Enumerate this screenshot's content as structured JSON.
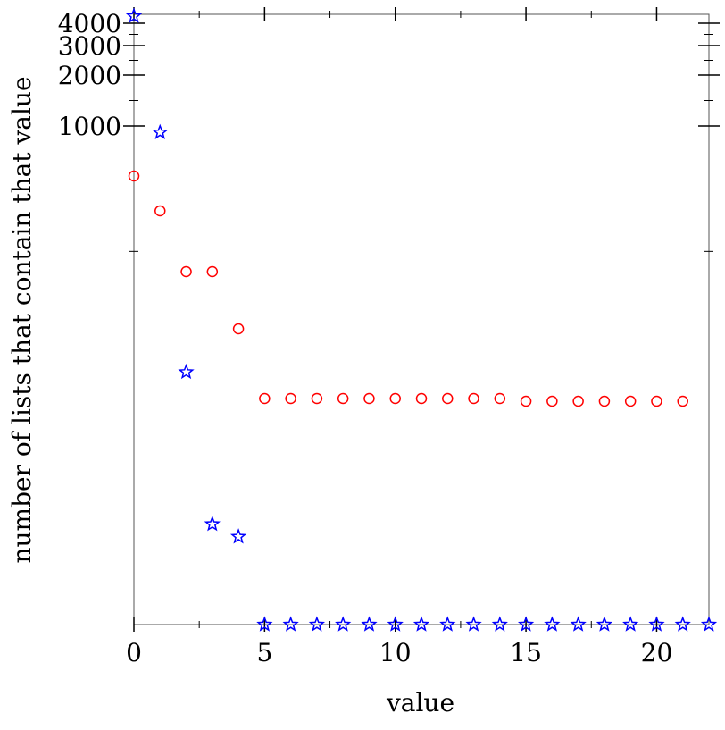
{
  "chart_data": {
    "type": "scatter",
    "xlabel": "value",
    "ylabel": "number of lists that contain that value",
    "xlim": [
      0,
      22
    ],
    "ylim": [
      0,
      4300
    ],
    "y_scale": "log (nonlinear, stretched near top)",
    "x_ticks": [
      "0",
      "5",
      "10",
      "15",
      "20"
    ],
    "y_ticks": [
      "1000",
      "2000",
      "3000",
      "4000"
    ],
    "marker_colors": {
      "circle": "#ff0000",
      "star": "#0000ff"
    },
    "series": [
      {
        "marker": "circle",
        "color": "#ff0000",
        "points": [
          {
            "x": 0,
            "y": 690
          },
          {
            "x": 1,
            "y": 590
          },
          {
            "x": 2,
            "y": 455
          },
          {
            "x": 3,
            "y": 455
          },
          {
            "x": 4,
            "y": 330
          },
          {
            "x": 5,
            "y": 185
          },
          {
            "x": 6,
            "y": 185
          },
          {
            "x": 7,
            "y": 185
          },
          {
            "x": 8,
            "y": 185
          },
          {
            "x": 9,
            "y": 185
          },
          {
            "x": 10,
            "y": 185
          },
          {
            "x": 11,
            "y": 185
          },
          {
            "x": 12,
            "y": 185
          },
          {
            "x": 13,
            "y": 185
          },
          {
            "x": 14,
            "y": 185
          },
          {
            "x": 15,
            "y": 178
          },
          {
            "x": 16,
            "y": 178
          },
          {
            "x": 17,
            "y": 178
          },
          {
            "x": 18,
            "y": 178
          },
          {
            "x": 19,
            "y": 178
          },
          {
            "x": 20,
            "y": 178
          },
          {
            "x": 21,
            "y": 178
          }
        ]
      },
      {
        "marker": "star",
        "color": "#0000ff",
        "points": [
          {
            "x": 0,
            "y": 4300
          },
          {
            "x": 1,
            "y": 960
          },
          {
            "x": 2,
            "y": 240
          },
          {
            "x": 3,
            "y": 80
          },
          {
            "x": 4,
            "y": 70
          },
          {
            "x": 5,
            "y": 0
          },
          {
            "x": 6,
            "y": 0
          },
          {
            "x": 7,
            "y": 0
          },
          {
            "x": 8,
            "y": 0
          },
          {
            "x": 9,
            "y": 0
          },
          {
            "x": 10,
            "y": 0
          },
          {
            "x": 11,
            "y": 0
          },
          {
            "x": 12,
            "y": 0
          },
          {
            "x": 13,
            "y": 0
          },
          {
            "x": 14,
            "y": 0
          },
          {
            "x": 15,
            "y": 0
          },
          {
            "x": 16,
            "y": 0
          },
          {
            "x": 17,
            "y": 0
          },
          {
            "x": 18,
            "y": 0
          },
          {
            "x": 19,
            "y": 0
          },
          {
            "x": 20,
            "y": 0
          },
          {
            "x": 21,
            "y": 0
          },
          {
            "x": 22,
            "y": 0
          }
        ]
      }
    ]
  }
}
